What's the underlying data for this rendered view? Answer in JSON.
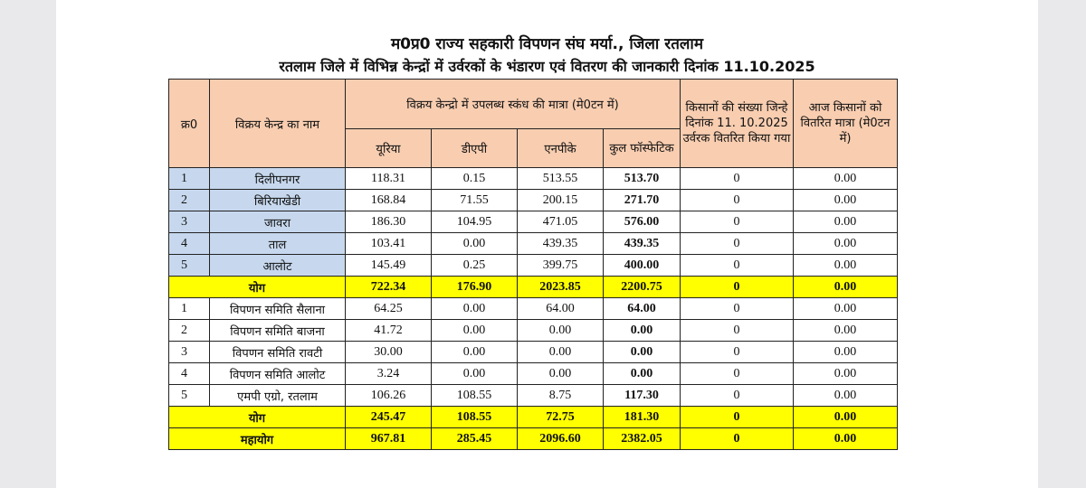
{
  "title_line1": "म0प्र0 राज्य सहकारी विपणन संघ मर्या., जिला रतलाम",
  "title_line2": "रतलाम जिले में विभिन्न केन्द्रों में उर्वरकों के भंडारण एवं वितरण की जानकारी दिनांक 11.10.2025",
  "headers": {
    "serial": "क्र0",
    "center_name": "विक्रय केन्द्र का नाम",
    "stock_group": "विक्रय केन्द्रो में उपलब्ध स्कंध की मात्रा (मे0टन में)",
    "urea": "यूरिया",
    "dap": "डीएपी",
    "npk": "एनपीके",
    "total_phosphatic": "कुल फॉस्फेटिक",
    "farmers_count": "किसानों की संख्या जिन्हे दिनांक 11. 10.2025 उर्वरक वितरित किया गया",
    "distributed_qty": "आज किसानों को वितरित मात्रा (मे0टन में)"
  },
  "group1": [
    {
      "sn": "1",
      "name": "दिलीपनगर",
      "urea": "118.31",
      "dap": "0.15",
      "npk": "513.55",
      "total": "513.70",
      "farmers": "0",
      "qty": "0.00"
    },
    {
      "sn": "2",
      "name": "बिरियाखेडी",
      "urea": "168.84",
      "dap": "71.55",
      "npk": "200.15",
      "total": "271.70",
      "farmers": "0",
      "qty": "0.00"
    },
    {
      "sn": "3",
      "name": "जावरा",
      "urea": "186.30",
      "dap": "104.95",
      "npk": "471.05",
      "total": "576.00",
      "farmers": "0",
      "qty": "0.00"
    },
    {
      "sn": "4",
      "name": "ताल",
      "urea": "103.41",
      "dap": "0.00",
      "npk": "439.35",
      "total": "439.35",
      "farmers": "0",
      "qty": "0.00"
    },
    {
      "sn": "5",
      "name": "आलोट",
      "urea": "145.49",
      "dap": "0.25",
      "npk": "399.75",
      "total": "400.00",
      "farmers": "0",
      "qty": "0.00"
    }
  ],
  "group1_total": {
    "label": "योग",
    "urea": "722.34",
    "dap": "176.90",
    "npk": "2023.85",
    "total": "2200.75",
    "farmers": "0",
    "qty": "0.00"
  },
  "group2": [
    {
      "sn": "1",
      "name": "विपणन समिति सैलाना",
      "urea": "64.25",
      "dap": "0.00",
      "npk": "64.00",
      "total": "64.00",
      "farmers": "0",
      "qty": "0.00"
    },
    {
      "sn": "2",
      "name": "विपणन समिति बाजना",
      "urea": "41.72",
      "dap": "0.00",
      "npk": "0.00",
      "total": "0.00",
      "farmers": "0",
      "qty": "0.00"
    },
    {
      "sn": "3",
      "name": "विपणन समिति रावटी",
      "urea": "30.00",
      "dap": "0.00",
      "npk": "0.00",
      "total": "0.00",
      "farmers": "0",
      "qty": "0.00"
    },
    {
      "sn": "4",
      "name": "विपणन समिति आलोट",
      "urea": "3.24",
      "dap": "0.00",
      "npk": "0.00",
      "total": "0.00",
      "farmers": "0",
      "qty": "0.00"
    },
    {
      "sn": "5",
      "name": "एमपी एग्रो, रतलाम",
      "urea": "106.26",
      "dap": "108.55",
      "npk": "8.75",
      "total": "117.30",
      "farmers": "0",
      "qty": "0.00"
    }
  ],
  "group2_total": {
    "label": "योग",
    "urea": "245.47",
    "dap": "108.55",
    "npk": "72.75",
    "total": "181.30",
    "farmers": "0",
    "qty": "0.00"
  },
  "grand_total": {
    "label": "महायोग",
    "urea": "967.81",
    "dap": "285.45",
    "npk": "2096.60",
    "total": "2382.05",
    "farmers": "0",
    "qty": "0.00"
  }
}
